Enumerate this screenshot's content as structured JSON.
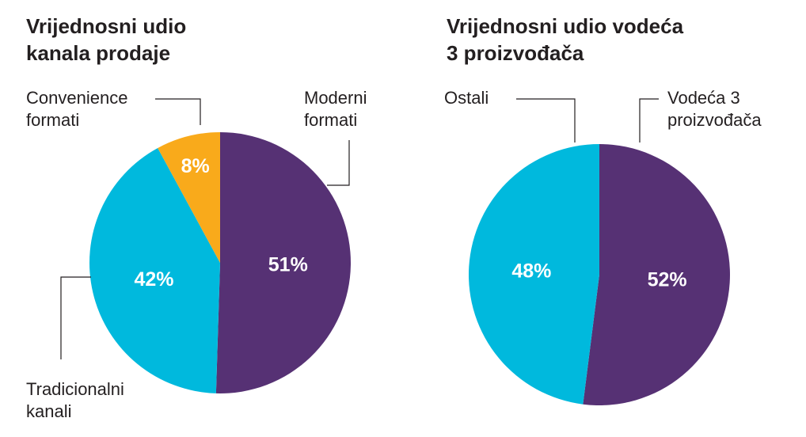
{
  "chart_data": [
    {
      "type": "pie",
      "title": "Vrijednosni udio\nkanala prodaje",
      "slices": [
        {
          "label": "Moderni\nformati",
          "value": 51,
          "value_label": "51%",
          "color": "#563174"
        },
        {
          "label": "Tradicionalni\nkanali",
          "value": 42,
          "value_label": "42%",
          "color": "#00b9dd"
        },
        {
          "label": "Convenience\nformati",
          "value": 8,
          "value_label": "8%",
          "color": "#f9aa1b"
        }
      ]
    },
    {
      "type": "pie",
      "title": "Vrijednosni udio vodeća\n3 proizvođača",
      "slices": [
        {
          "label": "Vodeća 3\nproizvođača",
          "value": 52,
          "value_label": "52%",
          "color": "#563174"
        },
        {
          "label": "Ostali",
          "value": 48,
          "value_label": "48%",
          "color": "#00b9dd"
        }
      ]
    }
  ]
}
